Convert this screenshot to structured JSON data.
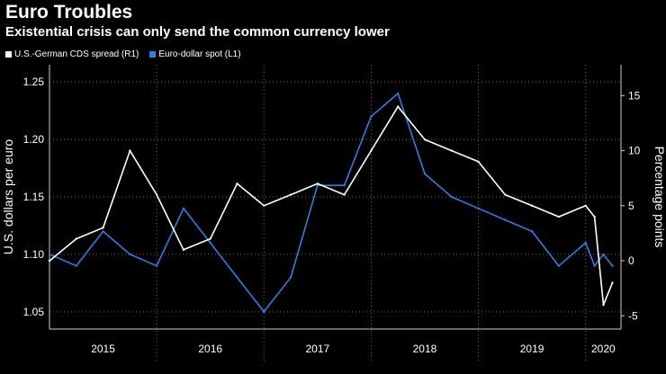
{
  "title": "Euro Troubles",
  "subtitle": "Existential crisis can only send the common currency lower",
  "colors": {
    "background": "#000000",
    "cds": "#ffffff",
    "eurusd": "#2f7fe0",
    "grid": "#6e6e6e"
  },
  "chart_data": {
    "type": "line",
    "legend": [
      {
        "name": "U.S.-German CDS spread (R1)",
        "color": "#ffffff"
      },
      {
        "name": "Euro-dollar spot (L1)",
        "color": "#2f7fe0"
      }
    ],
    "ylabel_left": "U.S. dollars per euro",
    "ylabel_right": "Percentage points",
    "yticks_left": [
      "1.05",
      "1.10",
      "1.15",
      "1.20",
      "1.25"
    ],
    "yticks_right": [
      "-5",
      "0",
      "5",
      "10",
      "15"
    ],
    "ylim_left": [
      1.035,
      1.265
    ],
    "ylim_right": [
      -6.2,
      17.8
    ],
    "x_categories": [
      "2015",
      "2016",
      "2017",
      "2018",
      "2019",
      "2020"
    ],
    "x": [
      "2015-01",
      "2015-04",
      "2015-07",
      "2015-10",
      "2016-01",
      "2016-04",
      "2016-07",
      "2016-10",
      "2017-01",
      "2017-04",
      "2017-07",
      "2017-10",
      "2018-01",
      "2018-04",
      "2018-07",
      "2018-10",
      "2019-01",
      "2019-04",
      "2019-07",
      "2019-10",
      "2020-01",
      "2020-02",
      "2020-03",
      "2020-04"
    ],
    "series": [
      {
        "name": "Euro-dollar spot (L1)",
        "axis": "left",
        "values": [
          1.1,
          1.09,
          1.12,
          1.1,
          1.09,
          1.14,
          1.11,
          1.08,
          1.05,
          1.08,
          1.16,
          1.16,
          1.22,
          1.24,
          1.17,
          1.15,
          1.14,
          1.13,
          1.12,
          1.09,
          1.11,
          1.09,
          1.1,
          1.09
        ]
      },
      {
        "name": "U.S.-German CDS spread (R1)",
        "axis": "right",
        "values": [
          0,
          2,
          3,
          10,
          6,
          1,
          2,
          7,
          5,
          6,
          7,
          6,
          10,
          14,
          11,
          10,
          9,
          6,
          5,
          4,
          5,
          4,
          -4,
          -2
        ]
      }
    ]
  }
}
